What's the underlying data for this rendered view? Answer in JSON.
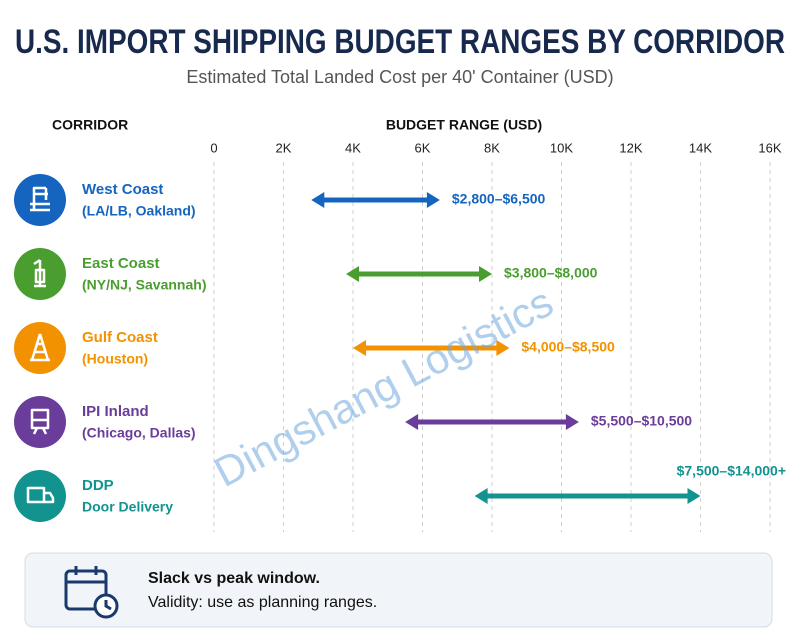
{
  "chart_data": {
    "type": "range",
    "title": "U.S. IMPORT SHIPPING BUDGET RANGES BY CORRIDOR",
    "subtitle": "Estimated Total Landed Cost per 40' Container (USD)",
    "y_header": "CORRIDOR",
    "x_header": "BUDGET RANGE (USD)",
    "categories": [
      "West Coast",
      "East Coast",
      "Gulf Coast",
      "IPI Inland",
      "DDP"
    ],
    "category_details": [
      "(LA/LB, Oakland)",
      "(NY/NJ, Savannah)",
      "(Houston)",
      "(Chicago, Dallas)",
      "Door Delivery"
    ],
    "colors": [
      "#1565c0",
      "#4a9e2f",
      "#f39200",
      "#6a3d9a",
      "#13938f"
    ],
    "low": [
      2800,
      3800,
      4000,
      5500,
      7500
    ],
    "high": [
      6500,
      8000,
      8500,
      10500,
      14000
    ],
    "value_labels": [
      "$2,800–$6,500",
      "$3,800–$8,000",
      "$4,000–$8,500",
      "$5,500–$10,500",
      "$7,500–$14,000+"
    ],
    "xlim": [
      0,
      16000
    ],
    "xticks": [
      0,
      {
        "value": 2000,
        "label": "2K"
      },
      {
        "value": 4000,
        "label": "4K"
      },
      {
        "value": 6000,
        "label": "6K"
      },
      {
        "value": 8000,
        "label": "8K"
      },
      {
        "value": 10000,
        "label": "10K"
      },
      {
        "value": 12000,
        "label": "12K"
      },
      {
        "value": 14000,
        "label": "14K"
      },
      {
        "value": 16000,
        "label": "16K"
      }
    ],
    "grid": true,
    "watermark": "Dingshang Logistics"
  },
  "footer": {
    "title": "Slack vs peak window.",
    "text": "Validity: use as planning ranges."
  }
}
